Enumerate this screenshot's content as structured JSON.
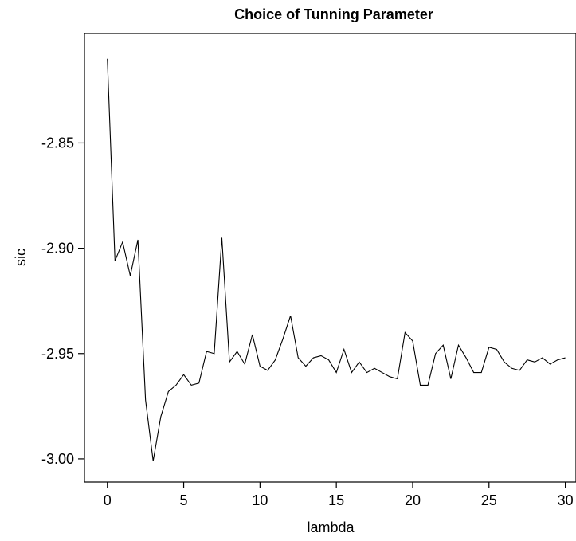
{
  "chart_data": {
    "type": "line",
    "title": "Choice of Tunning Parameter",
    "xlabel": "lambda",
    "ylabel": "sic",
    "xlim": [
      -1.5,
      30.7
    ],
    "ylim": [
      -3.011,
      -2.798
    ],
    "xticks": [
      0,
      5,
      10,
      15,
      20,
      25,
      30
    ],
    "xtick_labels": [
      "0",
      "5",
      "10",
      "15",
      "20",
      "25",
      "30"
    ],
    "yticks": [
      -2.85,
      -2.9,
      -2.95,
      -3.0
    ],
    "ytick_labels": [
      "-2.85",
      "-2.90",
      "-2.95",
      "-3.00"
    ],
    "grid": false,
    "series": [
      {
        "x": [
          0,
          0.5,
          1,
          1.5,
          2,
          2.5,
          3,
          3.5,
          4,
          4.5,
          5,
          5.5,
          6,
          6.5,
          7,
          7.5,
          8,
          8.5,
          9,
          9.5,
          10,
          10.5,
          11,
          11.5,
          12,
          12.5,
          13,
          13.5,
          14,
          14.5,
          15,
          15.5,
          16,
          16.5,
          17,
          17.5,
          18,
          18.5,
          19,
          19.5,
          20,
          20.5,
          21,
          21.5,
          22,
          22.5,
          23,
          23.5,
          24,
          24.5,
          25,
          25.5,
          26,
          26.5,
          27,
          27.5,
          28,
          28.5,
          29,
          29.5,
          30
        ],
        "y": [
          -2.81,
          -2.906,
          -2.897,
          -2.913,
          -2.896,
          -2.972,
          -3.001,
          -2.98,
          -2.968,
          -2.965,
          -2.96,
          -2.965,
          -2.964,
          -2.949,
          -2.95,
          -2.895,
          -2.954,
          -2.949,
          -2.955,
          -2.941,
          -2.956,
          -2.958,
          -2.953,
          -2.943,
          -2.932,
          -2.952,
          -2.956,
          -2.952,
          -2.951,
          -2.953,
          -2.959,
          -2.948,
          -2.959,
          -2.954,
          -2.959,
          -2.957,
          -2.959,
          -2.961,
          -2.962,
          -2.94,
          -2.944,
          -2.965,
          -2.965,
          -2.95,
          -2.946,
          -2.962,
          -2.946,
          -2.952,
          -2.959,
          -2.959,
          -2.947,
          -2.948,
          -2.954,
          -2.957,
          -2.958,
          -2.953,
          -2.954,
          -2.952,
          -2.955,
          -2.953,
          -2.952
        ]
      }
    ]
  }
}
